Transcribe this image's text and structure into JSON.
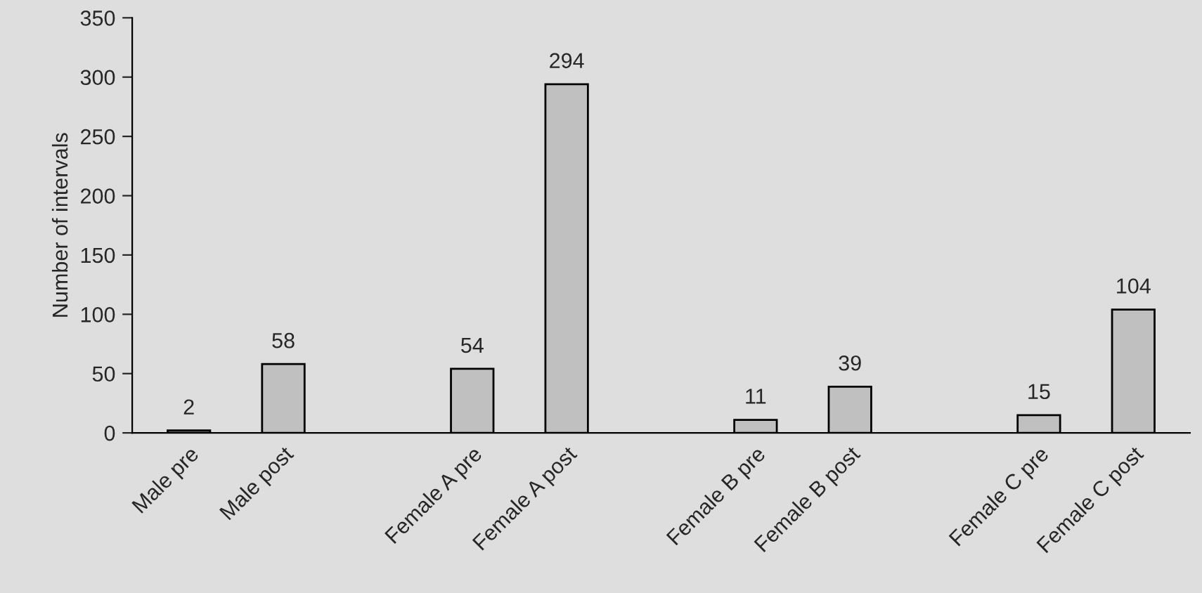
{
  "chart_data": {
    "type": "bar",
    "ylabel": "Number of intervals",
    "categories": [
      "Male pre",
      "Male post",
      null,
      "Female A pre",
      "Female A post",
      null,
      "Female B pre",
      "Female B post",
      null,
      "Female C pre",
      "Female C post"
    ],
    "values": [
      2,
      58,
      null,
      54,
      294,
      null,
      11,
      39,
      null,
      15,
      104
    ],
    "color": "#c0c0c0",
    "ylim": [
      0,
      350
    ],
    "yticks": [
      0,
      50,
      100,
      150,
      200,
      250,
      300,
      350
    ],
    "data_labels": true,
    "grid": false,
    "legend": false
  }
}
